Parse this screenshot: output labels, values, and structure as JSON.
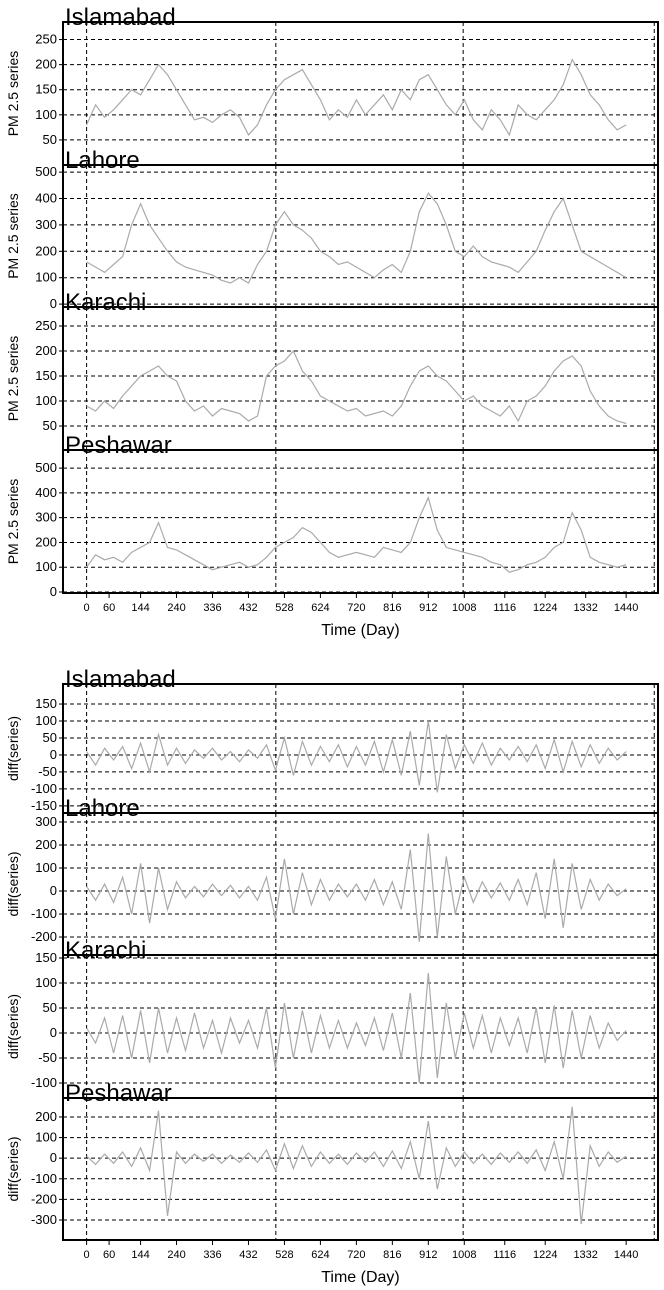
{
  "chart_data": [
    {
      "type": "line",
      "xlabel": "Time (Day)",
      "xlim": [
        -63,
        1525
      ],
      "xticks": [
        0,
        60,
        144,
        240,
        336,
        432,
        528,
        624,
        720,
        816,
        912,
        1008,
        1116,
        1224,
        1332,
        1440
      ],
      "xgrid": [
        0,
        505,
        1005,
        1515
      ],
      "color": "#aaaaaa",
      "x": [
        0,
        24,
        48,
        72,
        96,
        120,
        144,
        168,
        192,
        216,
        240,
        264,
        288,
        312,
        336,
        360,
        384,
        408,
        432,
        456,
        480,
        504,
        528,
        552,
        576,
        600,
        624,
        648,
        672,
        696,
        720,
        744,
        768,
        792,
        816,
        840,
        864,
        888,
        912,
        936,
        960,
        984,
        1008,
        1032,
        1056,
        1080,
        1104,
        1128,
        1152,
        1176,
        1200,
        1224,
        1248,
        1272,
        1296,
        1320,
        1344,
        1368,
        1392,
        1416,
        1440
      ],
      "panels": [
        {
          "title": "Islamabad",
          "ylabel": "PM 2.5 series",
          "ylim": [
            0,
            285
          ],
          "yticks": [
            50,
            100,
            150,
            200,
            250
          ],
          "values": [
            80,
            120,
            95,
            110,
            130,
            150,
            140,
            170,
            200,
            180,
            150,
            120,
            90,
            95,
            85,
            100,
            110,
            95,
            60,
            80,
            120,
            150,
            170,
            180,
            190,
            160,
            130,
            90,
            110,
            95,
            130,
            100,
            120,
            140,
            110,
            150,
            130,
            170,
            180,
            150,
            120,
            100,
            130,
            90,
            70,
            110,
            90,
            60,
            120,
            100,
            90,
            110,
            130,
            160,
            210,
            180,
            140,
            120,
            90,
            70,
            80
          ]
        },
        {
          "title": "Lahore",
          "ylabel": "PM 2.5 series",
          "ylim": [
            -11,
            527
          ],
          "yticks": [
            0,
            100,
            200,
            300,
            400,
            500
          ],
          "values": [
            160,
            140,
            120,
            150,
            180,
            300,
            380,
            300,
            250,
            200,
            160,
            140,
            130,
            120,
            110,
            90,
            80,
            100,
            80,
            150,
            200,
            300,
            350,
            300,
            280,
            250,
            200,
            180,
            150,
            160,
            140,
            120,
            100,
            130,
            150,
            120,
            200,
            350,
            420,
            380,
            300,
            200,
            180,
            220,
            180,
            160,
            150,
            140,
            120,
            160,
            200,
            280,
            350,
            400,
            300,
            200,
            180,
            160,
            140,
            120,
            100
          ]
        },
        {
          "title": "Karachi",
          "ylabel": "PM 2.5 series",
          "ylim": [
            2,
            288
          ],
          "yticks": [
            50,
            100,
            150,
            200,
            250
          ],
          "values": [
            90,
            80,
            100,
            85,
            110,
            130,
            150,
            160,
            170,
            150,
            140,
            100,
            80,
            90,
            70,
            85,
            80,
            75,
            60,
            70,
            150,
            170,
            180,
            200,
            160,
            140,
            110,
            100,
            90,
            80,
            85,
            70,
            75,
            80,
            70,
            90,
            130,
            160,
            170,
            150,
            140,
            120,
            100,
            110,
            90,
            80,
            70,
            90,
            60,
            100,
            110,
            130,
            160,
            180,
            190,
            170,
            120,
            90,
            70,
            60,
            55
          ]
        },
        {
          "title": "Peshawar",
          "ylabel": "PM 2.5 series",
          "ylim": [
            -4,
            573
          ],
          "yticks": [
            0,
            100,
            200,
            300,
            400,
            500
          ],
          "values": [
            100,
            150,
            130,
            140,
            120,
            160,
            180,
            200,
            280,
            180,
            170,
            150,
            130,
            110,
            90,
            100,
            110,
            120,
            100,
            110,
            140,
            180,
            200,
            220,
            260,
            240,
            200,
            160,
            140,
            150,
            160,
            150,
            140,
            180,
            170,
            160,
            200,
            300,
            380,
            250,
            180,
            170,
            160,
            150,
            140,
            120,
            110,
            80,
            90,
            110,
            120,
            140,
            180,
            200,
            320,
            250,
            140,
            120,
            110,
            100,
            110
          ]
        }
      ]
    },
    {
      "type": "line",
      "xlabel": "Time (Day)",
      "xlim": [
        -63,
        1525
      ],
      "xticks": [
        0,
        60,
        144,
        240,
        336,
        432,
        528,
        624,
        720,
        816,
        912,
        1008,
        1116,
        1224,
        1332,
        1440
      ],
      "xgrid": [
        0,
        505,
        1005,
        1515
      ],
      "color": "#aaaaaa",
      "x": [
        0,
        24,
        48,
        72,
        96,
        120,
        144,
        168,
        192,
        216,
        240,
        264,
        288,
        312,
        336,
        360,
        384,
        408,
        432,
        456,
        480,
        504,
        528,
        552,
        576,
        600,
        624,
        648,
        672,
        696,
        720,
        744,
        768,
        792,
        816,
        840,
        864,
        888,
        912,
        936,
        960,
        984,
        1008,
        1032,
        1056,
        1080,
        1104,
        1128,
        1152,
        1176,
        1200,
        1224,
        1248,
        1272,
        1296,
        1320,
        1344,
        1368,
        1392,
        1416,
        1440
      ],
      "panels": [
        {
          "title": "Islamabad",
          "ylabel": "diff(series)",
          "ylim": [
            -171,
            209
          ],
          "yticks": [
            -150,
            -100,
            -50,
            0,
            50,
            100,
            150
          ],
          "values": [
            10,
            -30,
            20,
            -15,
            25,
            -40,
            35,
            -50,
            60,
            -30,
            20,
            -25,
            15,
            -10,
            20,
            -15,
            10,
            -20,
            15,
            -10,
            30,
            -45,
            50,
            -60,
            40,
            -30,
            25,
            -20,
            30,
            -35,
            25,
            -30,
            40,
            -50,
            45,
            -60,
            70,
            -90,
            100,
            -110,
            60,
            -40,
            30,
            -25,
            35,
            -30,
            20,
            -15,
            25,
            -20,
            30,
            -40,
            45,
            -50,
            40,
            -35,
            30,
            -25,
            20,
            -15,
            10
          ]
        },
        {
          "title": "Lahore",
          "ylabel": "diff(series)",
          "ylim": [
            -278,
            339
          ],
          "yticks": [
            -200,
            -100,
            0,
            100,
            200,
            300
          ],
          "values": [
            20,
            -40,
            30,
            -50,
            60,
            -100,
            120,
            -140,
            100,
            -80,
            40,
            -30,
            20,
            -25,
            30,
            -20,
            25,
            -30,
            20,
            -40,
            60,
            -120,
            140,
            -100,
            80,
            -60,
            50,
            -40,
            30,
            -25,
            30,
            -40,
            50,
            -60,
            40,
            -80,
            180,
            -220,
            250,
            -200,
            150,
            -100,
            60,
            -50,
            40,
            -30,
            35,
            -40,
            50,
            -60,
            80,
            -120,
            140,
            -160,
            120,
            -80,
            50,
            -40,
            30,
            -20,
            10
          ]
        },
        {
          "title": "Karachi",
          "ylabel": "diff(series)",
          "ylim": [
            -130,
            156
          ],
          "yticks": [
            -100,
            -50,
            0,
            50,
            100,
            150
          ],
          "values": [
            10,
            -20,
            30,
            -40,
            35,
            -50,
            45,
            -60,
            50,
            -40,
            30,
            -35,
            40,
            -30,
            25,
            -40,
            30,
            -20,
            25,
            -30,
            50,
            -70,
            60,
            -50,
            45,
            -40,
            35,
            -30,
            25,
            -30,
            20,
            -25,
            30,
            -35,
            40,
            -50,
            80,
            -100,
            120,
            -90,
            60,
            -50,
            40,
            -30,
            35,
            -40,
            30,
            -25,
            30,
            -40,
            50,
            -60,
            55,
            -70,
            45,
            -50,
            35,
            -30,
            20,
            -15,
            5
          ]
        },
        {
          "title": "Peshawar",
          "ylabel": "diff(series)",
          "ylim": [
            -397,
            292
          ],
          "yticks": [
            -300,
            -200,
            -100,
            0,
            100,
            200
          ],
          "values": [
            10,
            -30,
            20,
            -25,
            30,
            -40,
            50,
            -60,
            230,
            -280,
            30,
            -25,
            20,
            -15,
            20,
            -25,
            15,
            -20,
            25,
            -20,
            40,
            -60,
            70,
            -50,
            60,
            -40,
            30,
            -25,
            20,
            -30,
            25,
            -20,
            30,
            -40,
            35,
            -50,
            80,
            -100,
            180,
            -150,
            50,
            -40,
            30,
            -25,
            20,
            -30,
            25,
            -20,
            30,
            -25,
            40,
            -60,
            80,
            -100,
            250,
            -320,
            60,
            -40,
            30,
            -20,
            10
          ]
        }
      ]
    }
  ]
}
